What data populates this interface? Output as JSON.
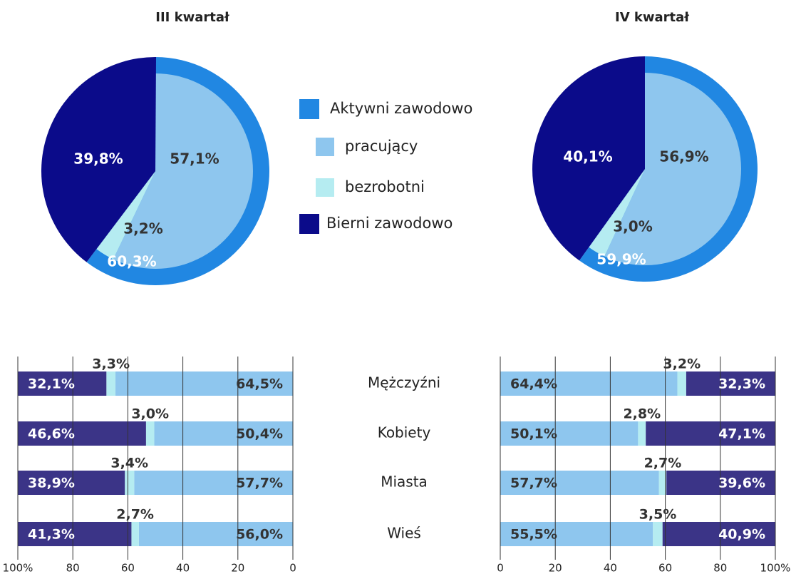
{
  "chart_data": [
    {
      "type": "pie",
      "categories": [
        "Aktywni zawodowo",
        "pracujący",
        "bezrobotni",
        "Bierni zawodowo"
      ],
      "colors": [
        "#2187e2",
        "#8ec6ee",
        "#b5ecf1",
        "#0b0b8a"
      ],
      "pies": [
        {
          "title": "III kwartał",
          "values": [
            60.3,
            57.1,
            3.2,
            39.8
          ],
          "value_labels": [
            "60,3%",
            "57,1%",
            "3,2%",
            "39,8%"
          ]
        },
        {
          "title": "IV kwartał",
          "values": [
            59.9,
            56.9,
            3.0,
            40.1
          ],
          "value_labels": [
            "59,9%",
            "56,9%",
            "3,0%",
            "40,1%"
          ]
        }
      ]
    },
    {
      "type": "bar",
      "categories": [
        "Mężczyźni",
        "Kobiety",
        "Miasta",
        "Wieś"
      ],
      "panels": [
        {
          "xlim": [
            100,
            0
          ],
          "xticks": [
            {
              "value": 100,
              "label": "100%"
            },
            80,
            60,
            40,
            20,
            0
          ],
          "series": [
            {
              "name": "pracujący",
              "color": "#8ec6ee",
              "values": [
                64.5,
                50.4,
                57.7,
                56.0
              ],
              "value_labels": [
                "64,5%",
                "50,4%",
                "57,7%",
                "56,0%"
              ]
            },
            {
              "name": "bezrobotni",
              "color": "#b5ecf1",
              "values": [
                3.3,
                3.0,
                3.4,
                2.7
              ],
              "value_labels": [
                "3,3%",
                "3,0%",
                "3,4%",
                "2,7%"
              ]
            },
            {
              "name": "Bierni zawodowo",
              "color": "#3b3487",
              "values": [
                32.1,
                46.6,
                38.9,
                41.3
              ],
              "value_labels": [
                "32,1%",
                "46,6%",
                "38,9%",
                "41,3%"
              ]
            }
          ]
        },
        {
          "xlim": [
            0,
            100
          ],
          "xticks": [
            0,
            20,
            40,
            60,
            80,
            {
              "value": 100,
              "label": "100%"
            }
          ],
          "series": [
            {
              "name": "pracujący",
              "color": "#8ec6ee",
              "values": [
                64.4,
                50.1,
                57.7,
                55.5
              ],
              "value_labels": [
                "64,4%",
                "50,1%",
                "57,7%",
                "55,5%"
              ]
            },
            {
              "name": "bezrobotni",
              "color": "#b5ecf1",
              "values": [
                3.2,
                2.8,
                2.7,
                3.5
              ],
              "value_labels": [
                "3,2%",
                "2,8%",
                "2,7%",
                "3,5%"
              ]
            },
            {
              "name": "Bierni zawodowo",
              "color": "#3b3487",
              "values": [
                32.3,
                47.1,
                39.6,
                40.9
              ],
              "value_labels": [
                "32,3%",
                "47,1%",
                "39,6%",
                "40,9%"
              ]
            }
          ]
        }
      ]
    }
  ]
}
